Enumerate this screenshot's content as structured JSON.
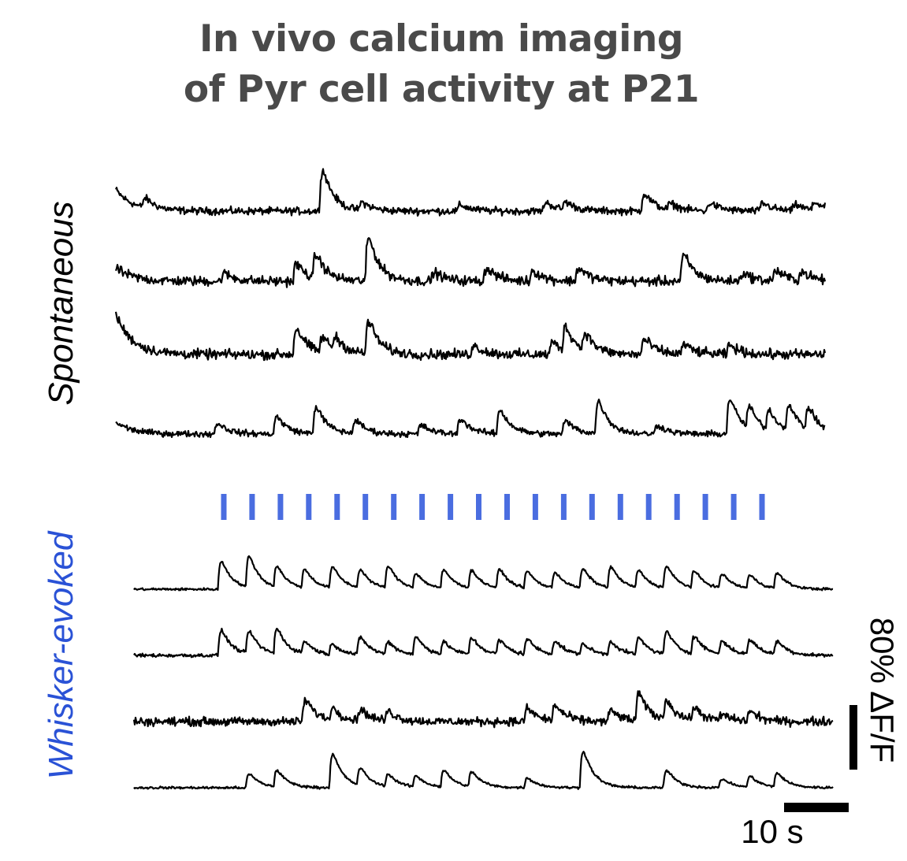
{
  "title": {
    "line1": "In vivo calcium imaging",
    "line2": "of Pyr cell activity at P21"
  },
  "colors": {
    "trace": "#000000",
    "stimulus": "#4a6de0",
    "title": "#4a4a4a",
    "whisker_label": "#2a52d6"
  },
  "chart_data": {
    "type": "line",
    "x_unit": "s",
    "y_unit": "ΔF/F (%)",
    "xlim": [
      0,
      108
    ],
    "grid": false,
    "groups": [
      {
        "label": "Spontaneous",
        "label_color": "#000000",
        "x_range": [
          0,
          108
        ],
        "baseline_start": [
          32,
          20,
          60,
          18
        ],
        "noise": [
          3,
          4,
          4,
          2.5
        ],
        "transients": [
          [
            [
              4,
              22
            ],
            [
              31,
              95
            ],
            [
              37,
              18
            ],
            [
              52,
              14
            ],
            [
              65,
              20
            ],
            [
              68,
              18
            ],
            [
              80,
              40
            ],
            [
              84,
              14
            ],
            [
              90,
              18
            ],
            [
              98,
              18
            ],
            [
              103,
              14
            ],
            [
              106,
              18
            ]
          ],
          [
            [
              16,
              18
            ],
            [
              27,
              40
            ],
            [
              30,
              55
            ],
            [
              38,
              100
            ],
            [
              48,
              20
            ],
            [
              56,
              30
            ],
            [
              63,
              24
            ],
            [
              70,
              30
            ],
            [
              86,
              60
            ],
            [
              95,
              18
            ],
            [
              100,
              24
            ],
            [
              104,
              20
            ]
          ],
          [
            [
              27,
              60
            ],
            [
              31,
              35
            ],
            [
              33,
              28
            ],
            [
              38,
              75
            ],
            [
              54,
              20
            ],
            [
              66,
              28
            ],
            [
              68,
              55
            ],
            [
              71,
              40
            ],
            [
              80,
              35
            ],
            [
              86,
              22
            ],
            [
              93,
              20
            ]
          ],
          [
            [
              15,
              25
            ],
            [
              24,
              40
            ],
            [
              30,
              62
            ],
            [
              36,
              30
            ],
            [
              46,
              20
            ],
            [
              52,
              35
            ],
            [
              58,
              55
            ],
            [
              68,
              30
            ],
            [
              73,
              75
            ],
            [
              82,
              20
            ],
            [
              93,
              82
            ],
            [
              96,
              50
            ],
            [
              99,
              45
            ],
            [
              102,
              60
            ],
            [
              105,
              50
            ]
          ]
        ]
      },
      {
        "label": "Whisker-evoked",
        "label_color": "#2a52d6",
        "x_range": [
          0,
          108
        ],
        "baseline_start": [
          0,
          0,
          0,
          0
        ],
        "noise": [
          1,
          1.5,
          3.5,
          1
        ],
        "stimulus_times": [
          13,
          17.3,
          21.6,
          25.9,
          30.2,
          34.5,
          38.8,
          43.1,
          47.4,
          51.7,
          56,
          60.3,
          64.6,
          68.9,
          73.2,
          77.5,
          81.8,
          86.1,
          90.4,
          94.7
        ],
        "transients": [
          [
            [
              13,
              65
            ],
            [
              17.3,
              72
            ],
            [
              21.6,
              48
            ],
            [
              25.9,
              42
            ],
            [
              30.2,
              48
            ],
            [
              34.5,
              42
            ],
            [
              38.8,
              50
            ],
            [
              43.1,
              32
            ],
            [
              47.4,
              42
            ],
            [
              51.7,
              40
            ],
            [
              56,
              42
            ],
            [
              60.3,
              38
            ],
            [
              64.6,
              36
            ],
            [
              68.9,
              44
            ],
            [
              73.2,
              48
            ],
            [
              77.5,
              40
            ],
            [
              81.8,
              50
            ],
            [
              86.1,
              38
            ],
            [
              90.4,
              32
            ],
            [
              94.7,
              30
            ],
            [
              98.9,
              35
            ]
          ],
          [
            [
              13,
              58
            ],
            [
              17.3,
              52
            ],
            [
              21.6,
              58
            ],
            [
              25.9,
              28
            ],
            [
              30.2,
              24
            ],
            [
              34.5,
              40
            ],
            [
              38.8,
              28
            ],
            [
              43.1,
              40
            ],
            [
              47.4,
              28
            ],
            [
              51.7,
              38
            ],
            [
              56,
              32
            ],
            [
              60.3,
              35
            ],
            [
              64.6,
              30
            ],
            [
              68.9,
              24
            ],
            [
              73.2,
              30
            ],
            [
              77.5,
              38
            ],
            [
              81.8,
              52
            ],
            [
              86.1,
              40
            ],
            [
              90.4,
              30
            ],
            [
              94.7,
              34
            ],
            [
              98.9,
              30
            ]
          ],
          [
            [
              26,
              50
            ],
            [
              30.2,
              28
            ],
            [
              34.5,
              26
            ],
            [
              38.8,
              22
            ],
            [
              60.3,
              30
            ],
            [
              64.6,
              35
            ],
            [
              73.2,
              25
            ],
            [
              77.5,
              62
            ],
            [
              81.8,
              45
            ],
            [
              86.1,
              28
            ],
            [
              90.4,
              14
            ],
            [
              94.7,
              22
            ]
          ],
          [
            [
              17.3,
              32
            ],
            [
              21.6,
              38
            ],
            [
              30.2,
              78
            ],
            [
              34.5,
              40
            ],
            [
              38.8,
              28
            ],
            [
              43.1,
              25
            ],
            [
              47.4,
              38
            ],
            [
              51.7,
              34
            ],
            [
              60.3,
              22
            ],
            [
              68.9,
              85
            ],
            [
              81.8,
              40
            ],
            [
              90.4,
              20
            ],
            [
              94.7,
              25
            ],
            [
              98.9,
              32
            ]
          ]
        ]
      }
    ],
    "scale_bar": {
      "y": "80% ΔF/F",
      "x": "10 s",
      "y_value": 80,
      "x_value": 10
    }
  }
}
